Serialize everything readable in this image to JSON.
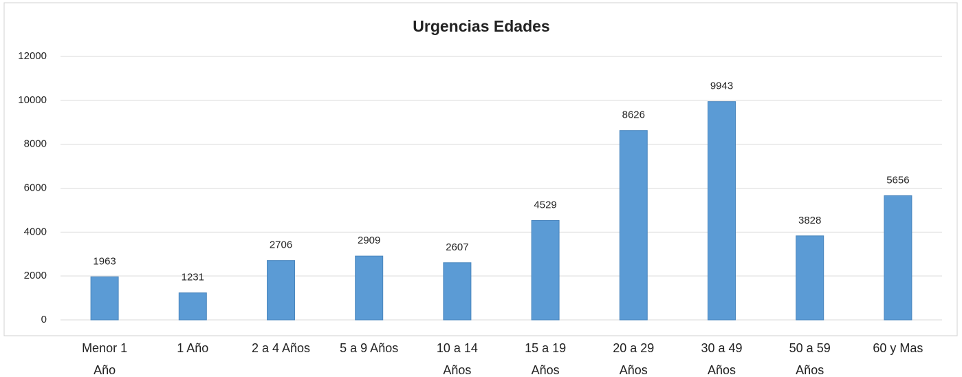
{
  "chart_data": {
    "type": "bar",
    "title": "Urgencias Edades",
    "categories": [
      "Menor 1 Año",
      "1 Año",
      "2 a 4 Años",
      "5 a 9 Años",
      "10 a 14 Años",
      "15 a 19 Años",
      "20 a 29 Años",
      "30 a 49 Años",
      "50 a 59 Años",
      "60 y Mas"
    ],
    "values": [
      1963,
      1231,
      2706,
      2909,
      2607,
      4529,
      8626,
      9943,
      3828,
      5656
    ],
    "color": "#5b9bd5",
    "ylim": [
      0,
      12000
    ],
    "yticks": [
      0,
      2000,
      4000,
      6000,
      8000,
      10000,
      12000
    ],
    "grid": true
  }
}
